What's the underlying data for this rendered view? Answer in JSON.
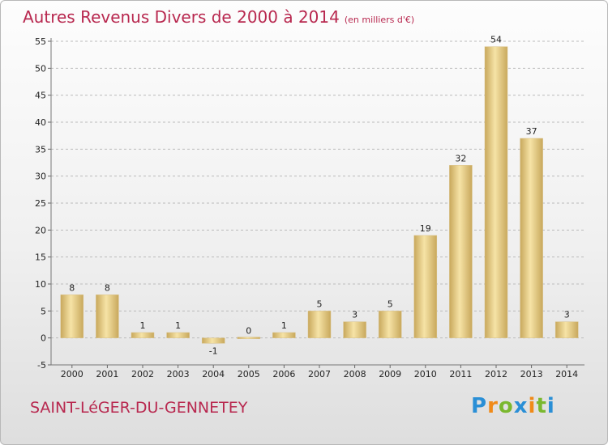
{
  "title": "Autres Revenus Divers de 2000 à 2014",
  "unit_note": "(en milliers d'€)",
  "commune": "SAINT-LéGER-DU-GENNETEY",
  "logo": {
    "text": "Proxiti",
    "letters": [
      {
        "ch": "P",
        "color": "#2a8fd6"
      },
      {
        "ch": "r",
        "color": "#f08a18"
      },
      {
        "ch": "o",
        "color": "#7ab82e"
      },
      {
        "ch": "x",
        "color": "#2a8fd6"
      },
      {
        "ch": "i",
        "color": "#f08a18"
      },
      {
        "ch": "t",
        "color": "#7ab82e"
      },
      {
        "ch": "i",
        "color": "#2a8fd6"
      }
    ]
  },
  "colors": {
    "bar_light": "#f6e3a6",
    "bar_dark": "#c8a85c",
    "title": "#b8284f",
    "grid": "#bbbbbb"
  },
  "chart_data": {
    "type": "bar",
    "categories": [
      "2000",
      "2001",
      "2002",
      "2003",
      "2004",
      "2005",
      "2006",
      "2007",
      "2008",
      "2009",
      "2010",
      "2011",
      "2012",
      "2013",
      "2014"
    ],
    "values": [
      8,
      8,
      1,
      1,
      -1,
      0,
      1,
      5,
      3,
      5,
      19,
      32,
      54,
      37,
      3
    ],
    "ylim": [
      -5,
      55
    ],
    "yticks": [
      -5,
      0,
      5,
      10,
      15,
      20,
      25,
      30,
      35,
      40,
      45,
      50,
      55
    ],
    "grid": "horizontal dashed",
    "legend": "none"
  }
}
